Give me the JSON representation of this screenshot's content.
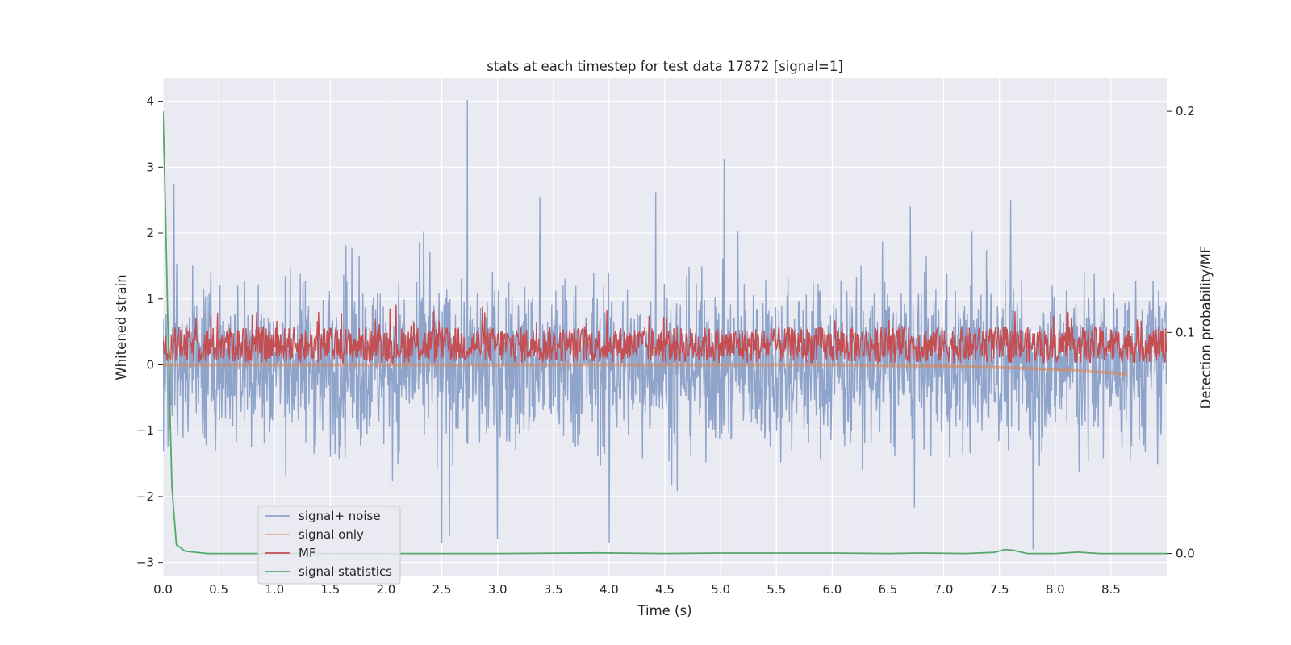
{
  "chart_data": {
    "type": "line",
    "title": "stats at each timestep for test data 17872 [signal=1]",
    "xlabel": "Time (s)",
    "ylabel": "Whitened strain",
    "y2label": "Detection probability/MF",
    "xlim": [
      0.0,
      9.0
    ],
    "ylim": [
      -3.2,
      4.35
    ],
    "y2lim": [
      -0.01,
      0.215
    ],
    "xticks": [
      "0.0",
      "0.5",
      "1.0",
      "1.5",
      "2.0",
      "2.5",
      "3.0",
      "3.5",
      "4.0",
      "4.5",
      "5.0",
      "5.5",
      "6.0",
      "6.5",
      "7.0",
      "7.5",
      "8.0",
      "8.5"
    ],
    "yticks": [
      "4",
      "3",
      "2",
      "1",
      "0",
      "−1",
      "−2",
      "−3"
    ],
    "y2ticks": [
      "0.2",
      "0.1",
      "0.0"
    ],
    "legend": [
      "signal+ noise",
      "signal only",
      "MF",
      "signal statistics"
    ],
    "legend_position": "lower-left",
    "colors": {
      "signal_noise": "#8fa4cb",
      "signal_only": "#dd8452",
      "mf": "#c44e52",
      "signal_statistics": "#55a868",
      "plot_bg": "#eaeaf2",
      "grid": "#ffffff"
    },
    "series": [
      {
        "name": "signal+ noise",
        "axis": "left",
        "description": "whitened strain noise, roughly within -2.7 to 2.7 with spike to 4.0 at t=2.73",
        "spikes": [
          [
            0.1,
            2.75
          ],
          [
            2.73,
            4.02
          ],
          [
            3.38,
            2.55
          ],
          [
            4.42,
            2.62
          ],
          [
            6.7,
            2.4
          ],
          [
            7.6,
            2.5
          ],
          [
            7.8,
            -2.85
          ],
          [
            2.5,
            -2.7
          ],
          [
            3.0,
            -2.65
          ],
          [
            4.0,
            -2.7
          ]
        ]
      },
      {
        "name": "signal only",
        "axis": "left",
        "points": [
          [
            0.0,
            0.0
          ],
          [
            1.0,
            0.0
          ],
          [
            2.0,
            0.0
          ],
          [
            3.0,
            0.0
          ],
          [
            4.0,
            0.0
          ],
          [
            5.0,
            0.0
          ],
          [
            6.0,
            0.0
          ],
          [
            6.5,
            -0.01
          ],
          [
            7.0,
            -0.02
          ],
          [
            7.5,
            -0.04
          ],
          [
            8.0,
            -0.07
          ],
          [
            8.3,
            -0.1
          ],
          [
            8.5,
            -0.12
          ],
          [
            8.65,
            -0.15
          ]
        ]
      },
      {
        "name": "MF",
        "axis": "left",
        "description": "matched filter output band roughly 0.0 to 0.8, mean about 0.3"
      },
      {
        "name": "signal statistics",
        "axis": "right",
        "points": [
          [
            0.0,
            0.2
          ],
          [
            0.02,
            0.16
          ],
          [
            0.05,
            0.09
          ],
          [
            0.08,
            0.03
          ],
          [
            0.12,
            0.004
          ],
          [
            0.2,
            0.001
          ],
          [
            0.4,
            0.0
          ],
          [
            1.0,
            0.0
          ],
          [
            2.0,
            0.0
          ],
          [
            3.0,
            0.0
          ],
          [
            3.9,
            0.0003
          ],
          [
            4.5,
            0.0
          ],
          [
            5.0,
            0.0002
          ],
          [
            6.0,
            0.0002
          ],
          [
            6.5,
            0.0
          ],
          [
            6.8,
            0.0002
          ],
          [
            7.2,
            0.0
          ],
          [
            7.45,
            0.0005
          ],
          [
            7.55,
            0.0018
          ],
          [
            7.62,
            0.0015
          ],
          [
            7.75,
            0.0
          ],
          [
            8.0,
            0.0
          ],
          [
            8.2,
            0.0006
          ],
          [
            8.4,
            0.0
          ],
          [
            9.0,
            0.0
          ]
        ]
      }
    ]
  }
}
